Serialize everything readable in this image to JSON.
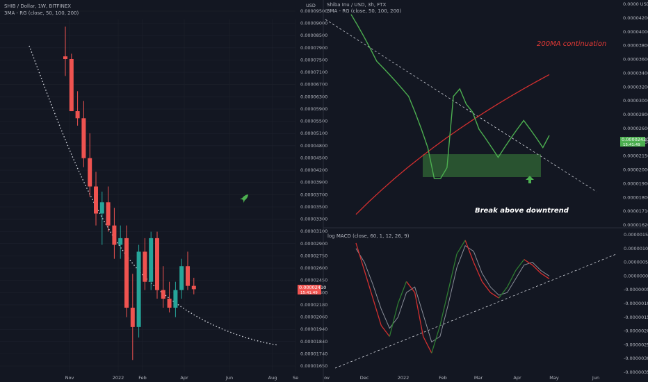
{
  "colors": {
    "background": "#131722",
    "grid": "#1e222d",
    "up": "#26a69a",
    "down": "#ef5350",
    "price_line_green": "#4caf50",
    "ma200": "#d32f2f",
    "zone": "#2e5e33",
    "arrow_green": "#4caf50",
    "trend_dotted": "#d1d4dc"
  },
  "left_panel": {
    "title": "SHIB / Dollar, 1W, BITFINEX",
    "indicator": "3MA - RG (close, 50, 100, 200)",
    "price_label": "0.00002410",
    "price_label_sub": "15:41:49",
    "rocket_icon": "rocket-icon",
    "x_ticks": [
      "Nov",
      "2022",
      "Feb",
      "Apr",
      "Jun",
      "Aug",
      "Se"
    ],
    "y_ticks": [
      "0.00009500",
      "0.00009000",
      "0.00008500",
      "0.00007900",
      "0.00007500",
      "0.00007100",
      "0.00006700",
      "0.00006300",
      "0.00005900",
      "0.00005500",
      "0.00005100",
      "0.00004800",
      "0.00004500",
      "0.00004200",
      "0.00003900",
      "0.00003700",
      "0.00003500",
      "0.00003300",
      "0.00003100",
      "0.00002900",
      "0.00002750",
      "0.00002600",
      "0.00002450",
      "0.00002300",
      "0.00002180",
      "0.00002060",
      "0.00001940",
      "0.00001840",
      "0.00001740",
      "0.00001650"
    ],
    "y_unit": "USD"
  },
  "right_top_panel": {
    "title": "Shiba Inu / USD, 3h, FTX",
    "indicator": "3MA - RG (close, 50, 100, 200)",
    "annotation_ma": "200MA continuation",
    "annotation_break": "Break above downtrend",
    "price_label": "0.00002430",
    "price_label_sub": "15:41:49",
    "arrow_icon": "arrow-up-icon",
    "y_ticks": [
      "0.0000 USD",
      "0.00004200",
      "0.00004000",
      "0.00003800",
      "0.00003600",
      "0.00003400",
      "0.00003200",
      "0.00003000",
      "0.00002800",
      "0.00002600",
      "0.00002300",
      "0.00002150",
      "0.00002000",
      "0.00001900",
      "0.00001800",
      "0.00001710",
      "0.00001620"
    ]
  },
  "right_bottom_panel": {
    "indicator": "log MACD (close, 60, 1, 12, 26, 9)",
    "y_ticks": [
      "0.00000150",
      "0.00000100",
      "0.00000050",
      "0.00000000",
      "-0.00000050",
      "-0.00000100",
      "-0.00000150",
      "-0.00000200",
      "-0.00000250",
      "-0.00000300",
      "-0.00000350"
    ],
    "x_ticks": [
      "ov",
      "Dec",
      "2022",
      "Feb",
      "Mar",
      "Apr",
      "May",
      "Jun"
    ]
  },
  "chart_data": [
    {
      "type": "candlestick",
      "title": "SHIB / Dollar, 1W, BITFINEX",
      "timeframe": "1W",
      "series": [
        {
          "name": "SHIB/USD",
          "candles": [
            {
              "o": 7.6e-05,
              "h": 8.8e-05,
              "l": 6.9e-05,
              "c": 7.5e-05
            },
            {
              "o": 7.5e-05,
              "h": 7.7e-05,
              "l": 5.8e-05,
              "c": 5.8e-05
            },
            {
              "o": 5.8e-05,
              "h": 6.4e-05,
              "l": 5.4e-05,
              "c": 5.6e-05
            },
            {
              "o": 5.6e-05,
              "h": 6.1e-05,
              "l": 4.4e-05,
              "c": 4.6e-05
            },
            {
              "o": 4.6e-05,
              "h": 5.2e-05,
              "l": 3.8e-05,
              "c": 4e-05
            },
            {
              "o": 4e-05,
              "h": 4.3e-05,
              "l": 3.3e-05,
              "c": 3.5e-05
            },
            {
              "o": 3.5e-05,
              "h": 3.9e-05,
              "l": 3e-05,
              "c": 3.7e-05
            },
            {
              "o": 3.7e-05,
              "h": 4e-05,
              "l": 3.2e-05,
              "c": 3.3e-05
            },
            {
              "o": 3.3e-05,
              "h": 3.6e-05,
              "l": 2.8e-05,
              "c": 3e-05
            },
            {
              "o": 3e-05,
              "h": 3.3e-05,
              "l": 2.8e-05,
              "c": 3.1e-05
            },
            {
              "o": 3.1e-05,
              "h": 3.3e-05,
              "l": 2.1e-05,
              "c": 2.2e-05
            },
            {
              "o": 2.2e-05,
              "h": 2.6e-05,
              "l": 1.7e-05,
              "c": 2e-05
            },
            {
              "o": 2e-05,
              "h": 3e-05,
              "l": 1.9e-05,
              "c": 2.9e-05
            },
            {
              "o": 2.9e-05,
              "h": 3.1e-05,
              "l": 2.4e-05,
              "c": 2.5e-05
            },
            {
              "o": 2.5e-05,
              "h": 3.2e-05,
              "l": 2.4e-05,
              "c": 3.1e-05
            },
            {
              "o": 3.1e-05,
              "h": 3.2e-05,
              "l": 2.3e-05,
              "c": 2.4e-05
            },
            {
              "o": 2.4e-05,
              "h": 2.7e-05,
              "l": 2.2e-05,
              "c": 2.3e-05
            },
            {
              "o": 2.3e-05,
              "h": 2.5e-05,
              "l": 2.15e-05,
              "c": 2.2e-05
            },
            {
              "o": 2.2e-05,
              "h": 2.5e-05,
              "l": 2.1e-05,
              "c": 2.4e-05
            },
            {
              "o": 2.4e-05,
              "h": 2.8e-05,
              "l": 2.3e-05,
              "c": 2.7e-05
            },
            {
              "o": 2.7e-05,
              "h": 2.9e-05,
              "l": 2.4e-05,
              "c": 2.45e-05
            },
            {
              "o": 2.45e-05,
              "h": 2.55e-05,
              "l": 2.35e-05,
              "c": 2.41e-05
            }
          ]
        }
      ],
      "x_ticks": [
        "Nov",
        "2022",
        "Feb",
        "Apr",
        "Jun",
        "Aug",
        "Se"
      ],
      "ylim": [
        1.65e-05,
        9.5e-05
      ],
      "y_scale": "log"
    },
    {
      "type": "line",
      "title": "Shiba Inu / USD, 3h, FTX",
      "series": [
        {
          "name": "Price",
          "values": [
            4.2e-05,
            4e-05,
            3.8e-05,
            3.6e-05,
            3.4e-05,
            3.3e-05,
            3.2e-05,
            3.1e-05,
            3e-05,
            2.9e-05,
            2.7e-05,
            2.5e-05,
            2.3e-05,
            2e-05,
            2e-05,
            2.1e-05,
            2.9e-05,
            3e-05,
            2.8e-05,
            2.7e-05,
            2.5e-05,
            2.4e-05,
            2.3e-05,
            2.2e-05,
            2.3e-05,
            2.4e-05,
            2.5e-05,
            2.6e-05,
            2.5e-05,
            2.4e-05,
            2.3e-05,
            2.43e-05
          ]
        },
        {
          "name": "200MA",
          "values": [
            1.7e-05,
            1.8e-05,
            1.9e-05,
            2e-05,
            2.1e-05,
            2.2e-05,
            2.3e-05,
            2.4e-05,
            2.5e-05,
            2.6e-05,
            2.7e-05,
            2.8e-05,
            2.9e-05,
            3e-05,
            3.1e-05,
            3.2e-05
          ]
        }
      ],
      "ylim": [
        1.62e-05,
        4.4e-05
      ],
      "y_scale": "log"
    },
    {
      "type": "line",
      "title": "log MACD (close, 60, 1, 12, 26, 9)",
      "series": [
        {
          "name": "MACD",
          "values": [
            1.2e-06,
            2e-07,
            -8e-07,
            -1.8e-06,
            -2.2e-06,
            -1e-06,
            -2e-07,
            -6e-07,
            -2.2e-06,
            -2.8e-06,
            -1.8e-06,
            -5e-07,
            8e-07,
            1.3e-06,
            5e-07,
            -2e-07,
            -6e-07,
            -8e-07,
            -4e-07,
            2e-07,
            6e-07,
            4e-07,
            1e-07,
            -1e-07
          ]
        },
        {
          "name": "Signal",
          "values": [
            1e-06,
            5e-07,
            -3e-07,
            -1.2e-06,
            -1.9e-06,
            -1.5e-06,
            -6e-07,
            -4e-07,
            -1.4e-06,
            -2.4e-06,
            -2.2e-06,
            -1e-06,
            3e-07,
            1.1e-06,
            9e-07,
            1e-07,
            -4e-07,
            -7e-07,
            -6e-07,
            -1e-07,
            4e-07,
            5e-07,
            2e-07,
            0.0
          ]
        }
      ],
      "ylim": [
        -3.5e-06,
        1.5e-06
      ]
    }
  ]
}
